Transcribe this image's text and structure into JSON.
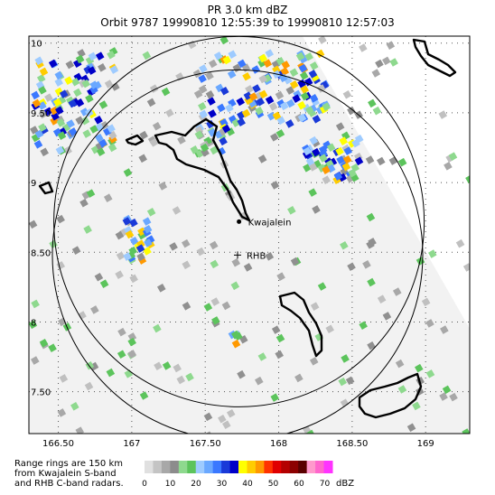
{
  "title": {
    "line1": "PR  3.0 km dBZ",
    "line2": "Orbit 9787 19990810 12:55:39 to 19990810 12:57:03"
  },
  "map": {
    "lon_range": [
      166.3,
      169.3
    ],
    "lat_range": [
      7.2,
      10.05
    ],
    "x_ticks": [
      {
        "value": 166.5,
        "label": "166.50"
      },
      {
        "value": 167.0,
        "label": "167"
      },
      {
        "value": 167.5,
        "label": "167.50"
      },
      {
        "value": 168.0,
        "label": "168"
      },
      {
        "value": 168.5,
        "label": "168.50"
      },
      {
        "value": 169.0,
        "label": "169"
      }
    ],
    "y_ticks": [
      {
        "value": 10.0,
        "label": "10"
      },
      {
        "value": 9.5,
        "label": "9.50"
      },
      {
        "value": 9.0,
        "label": "9"
      },
      {
        "value": 8.5,
        "label": "8.50"
      },
      {
        "value": 8.0,
        "label": "8"
      },
      {
        "value": 7.5,
        "label": "7.50"
      }
    ],
    "grid": "dotted",
    "swath_color": "#f2f2f2",
    "stations": [
      {
        "name": "Kwajalein",
        "lon": 167.73,
        "lat": 8.72,
        "marker": "dot"
      },
      {
        "name": "RHB",
        "lon": 167.72,
        "lat": 8.48,
        "marker": "plus"
      }
    ],
    "range_rings_km": 150
  },
  "notes": {
    "line1": "Range rings are 150 km",
    "line2": "from Kwajalein S-band",
    "line3": "and RHB C-band radars."
  },
  "colorbar": {
    "unit": "dBZ",
    "labels": [
      "0",
      "10",
      "20",
      "30",
      "40",
      "50",
      "60",
      "70"
    ],
    "colors": [
      "#e0e0e0",
      "#c4c4c4",
      "#a8a8a8",
      "#8c8c8c",
      "#8ed98e",
      "#5cc45c",
      "#9ecbff",
      "#6aa8ff",
      "#3a78ff",
      "#1a3ad8",
      "#0000c8",
      "#ffff00",
      "#ffcc00",
      "#ff9900",
      "#ff3300",
      "#e00000",
      "#b40000",
      "#8c0000",
      "#5a0000",
      "#ff99cc",
      "#ff66cc",
      "#ff33ff"
    ]
  }
}
